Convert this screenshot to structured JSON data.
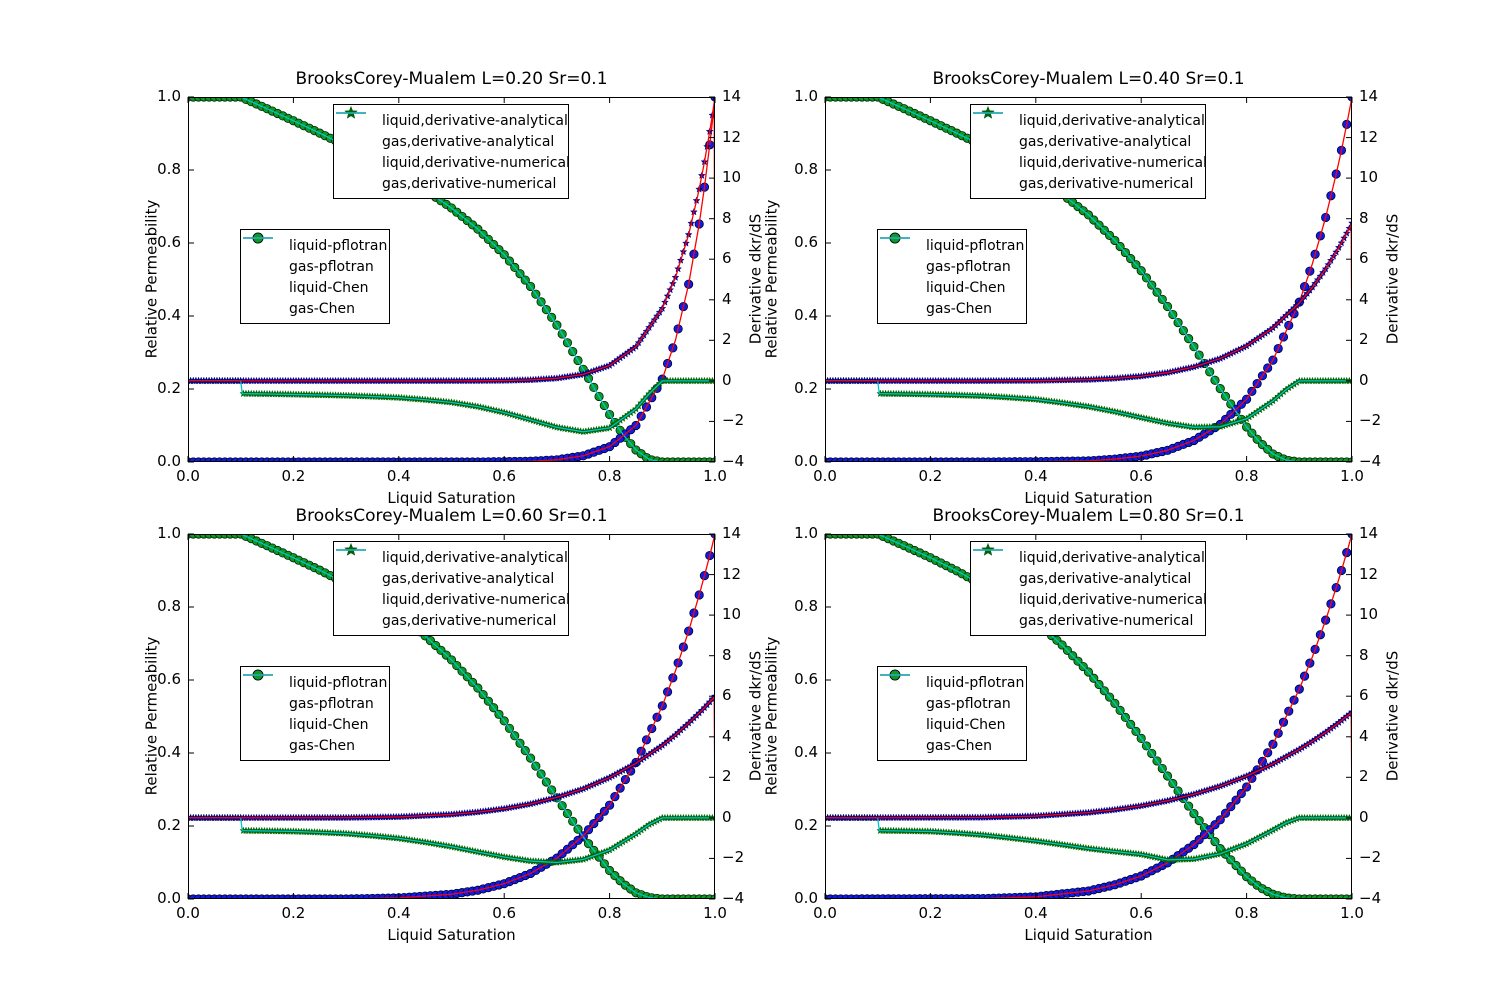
{
  "chart_data": {
    "type": "line",
    "layout": "2x2 subplots, twin y axes",
    "axes": {
      "xlabel": "Liquid Saturation",
      "ylabel_left": "Relative Permeability",
      "ylabel_right": "Derivative dkr/dS",
      "xlim": [
        0,
        1
      ],
      "ylim_left": [
        0.0,
        1.0
      ],
      "ylim_right": [
        -4,
        14
      ],
      "xticks": [
        0.0,
        0.2,
        0.4,
        0.6,
        0.8,
        1.0
      ],
      "xtick_labels": [
        "0.0",
        "0.2",
        "0.4",
        "0.6",
        "0.8",
        "1.0"
      ],
      "yticks_left": [
        0.0,
        0.2,
        0.4,
        0.6,
        0.8,
        1.0
      ],
      "ytick_left_labels": [
        "0.0",
        "0.2",
        "0.4",
        "0.6",
        "0.8",
        "1.0"
      ],
      "yticks_right": [
        -4,
        -2,
        0,
        2,
        4,
        6,
        8,
        10,
        12,
        14
      ],
      "ytick_right_labels": [
        "−4",
        "−2",
        "0",
        "2",
        "4",
        "6",
        "8",
        "10",
        "12",
        "14"
      ],
      "grid": false
    },
    "legend_analytical": [
      {
        "marker": "star",
        "color_key": "liquid_star",
        "label": "liquid,derivative-analytical"
      },
      {
        "marker": "star",
        "color_key": "gas_star",
        "label": "gas,derivative-analytical"
      },
      {
        "marker": "line",
        "color_key": "line_red",
        "label": "liquid,derivative-numerical"
      },
      {
        "marker": "line",
        "color_key": "line_cyan",
        "label": "gas,derivative-numerical"
      }
    ],
    "legend_pflotran": [
      {
        "marker": "circle",
        "color_key": "liquid_circle",
        "label": "liquid-pflotran"
      },
      {
        "marker": "circle",
        "color_key": "gas_circle",
        "label": "gas-pflotran"
      },
      {
        "marker": "line",
        "color_key": "line_red",
        "label": "liquid-Chen"
      },
      {
        "marker": "line",
        "color_key": "line_cyan",
        "label": "gas-Chen"
      }
    ],
    "colors": {
      "liquid_circle": "#0f1ce8",
      "gas_circle": "#0d9b22",
      "liquid_star": "#00008b",
      "gas_star": "#006400",
      "line_red": "#ff0000",
      "line_cyan": "#00c5cd",
      "spine": "#000000",
      "background": "#ffffff"
    },
    "x_gas": [
      0,
      0.05,
      0.1,
      0.15,
      0.2,
      0.25,
      0.3,
      0.35,
      0.4,
      0.45,
      0.5,
      0.55,
      0.6,
      0.65,
      0.7,
      0.75,
      0.8,
      0.825,
      0.85,
      0.875,
      0.9,
      0.95,
      1.0
    ],
    "x_gasd": [
      0,
      0.05,
      0.1,
      0.103,
      0.15,
      0.2,
      0.25,
      0.3,
      0.35,
      0.4,
      0.45,
      0.5,
      0.55,
      0.6,
      0.65,
      0.7,
      0.75,
      0.8,
      0.85,
      0.875,
      0.9,
      0.95,
      1.0
    ],
    "x_liq": [
      0,
      0.3,
      0.4,
      0.5,
      0.55,
      0.6,
      0.65,
      0.7,
      0.75,
      0.8,
      0.85,
      0.9,
      0.925,
      0.95,
      0.97,
      0.98,
      0.99,
      0.995,
      1.0
    ],
    "x_liqd": [
      0,
      0.3,
      0.4,
      0.5,
      0.55,
      0.6,
      0.65,
      0.7,
      0.75,
      0.8,
      0.85,
      0.9,
      0.925,
      0.95,
      0.97,
      0.98,
      0.99,
      0.995,
      0.9985,
      1.0
    ],
    "panels": [
      {
        "title": "BrooksCorey-Mualem L=0.20 Sr=0.1",
        "L": 0.2,
        "Sr": 0.1,
        "gas_kr": [
          1,
          1,
          1,
          0.968,
          0.935,
          0.901,
          0.866,
          0.829,
          0.789,
          0.745,
          0.696,
          0.638,
          0.568,
          0.481,
          0.375,
          0.254,
          0.13,
          0.076,
          0.033,
          0.007,
          0,
          0,
          0
        ],
        "gas_dkr": [
          0,
          0,
          0,
          -0.63,
          -0.645,
          -0.668,
          -0.695,
          -0.725,
          -0.772,
          -0.827,
          -0.93,
          -1.06,
          -1.27,
          -1.56,
          -1.92,
          -2.29,
          -2.51,
          -2.32,
          -1.39,
          -0.64,
          0,
          0,
          0
        ],
        "liquid_kr": [
          0,
          0,
          0,
          0,
          0,
          0.001,
          0.002,
          0.006,
          0.017,
          0.042,
          0.1,
          0.227,
          0.334,
          0.487,
          0.652,
          0.753,
          0.869,
          0.932,
          1.0
        ],
        "liquid_dkr": [
          0,
          0,
          0,
          0.001,
          0.005,
          0.015,
          0.046,
          0.127,
          0.321,
          0.758,
          1.69,
          3.57,
          5.1,
          7.21,
          9.45,
          10.8,
          12.3,
          13.1,
          13.75,
          14.0
        ]
      },
      {
        "title": "BrooksCorey-Mualem L=0.40 Sr=0.1",
        "L": 0.4,
        "Sr": 0.1,
        "gas_kr": [
          1,
          1,
          1,
          0.968,
          0.935,
          0.901,
          0.866,
          0.828,
          0.783,
          0.734,
          0.677,
          0.607,
          0.524,
          0.426,
          0.316,
          0.201,
          0.096,
          0.054,
          0.022,
          0.005,
          0,
          0,
          0
        ],
        "gas_dkr": [
          0,
          0,
          0,
          -0.63,
          -0.645,
          -0.668,
          -0.703,
          -0.745,
          -0.82,
          -0.914,
          -1.08,
          -1.27,
          -1.52,
          -1.81,
          -2.09,
          -2.29,
          -2.26,
          -1.87,
          -0.99,
          -0.43,
          0,
          0,
          0
        ],
        "liquid_kr": [
          0,
          0,
          0.001,
          0.003,
          0.008,
          0.016,
          0.032,
          0.059,
          0.103,
          0.172,
          0.279,
          0.438,
          0.544,
          0.67,
          0.789,
          0.854,
          0.925,
          0.962,
          1.0
        ],
        "liquid_dkr": [
          0,
          0,
          0.011,
          0.06,
          0.122,
          0.229,
          0.405,
          0.685,
          1.1,
          1.72,
          2.61,
          3.84,
          4.62,
          5.52,
          6.35,
          6.8,
          7.28,
          7.52,
          7.7,
          7.78
        ]
      },
      {
        "title": "BrooksCorey-Mualem L=0.60 Sr=0.1",
        "L": 0.6,
        "Sr": 0.1,
        "gas_kr": [
          1,
          1,
          1,
          0.968,
          0.935,
          0.901,
          0.864,
          0.823,
          0.776,
          0.721,
          0.655,
          0.578,
          0.488,
          0.386,
          0.277,
          0.17,
          0.078,
          0.043,
          0.017,
          0.004,
          0,
          0,
          0
        ],
        "gas_dkr": [
          0,
          0,
          0,
          -0.63,
          -0.645,
          -0.668,
          -0.714,
          -0.774,
          -0.88,
          -1.011,
          -1.2,
          -1.42,
          -1.68,
          -1.93,
          -2.13,
          -2.2,
          -2.05,
          -1.59,
          -0.79,
          -0.33,
          0,
          0,
          0
        ],
        "liquid_kr": [
          0,
          0,
          0.003,
          0.013,
          0.024,
          0.042,
          0.07,
          0.112,
          0.173,
          0.257,
          0.374,
          0.529,
          0.625,
          0.734,
          0.833,
          0.886,
          0.941,
          0.97,
          1.0
        ],
        "liquid_dkr": [
          0,
          0.008,
          0.048,
          0.169,
          0.285,
          0.452,
          0.687,
          1.01,
          1.43,
          1.99,
          2.69,
          3.57,
          4.09,
          4.67,
          5.17,
          5.43,
          5.71,
          5.86,
          5.95,
          6.0
        ]
      },
      {
        "title": "BrooksCorey-Mualem L=0.80 Sr=0.1",
        "L": 0.8,
        "Sr": 0.1,
        "gas_kr": [
          1,
          1,
          1,
          0.968,
          0.935,
          0.899,
          0.859,
          0.813,
          0.76,
          0.696,
          0.622,
          0.536,
          0.44,
          0.337,
          0.234,
          0.138,
          0.061,
          0.032,
          0.013,
          0.003,
          0,
          0,
          0
        ],
        "gas_dkr": [
          0,
          0,
          0,
          -0.63,
          -0.645,
          -0.668,
          -0.745,
          -0.845,
          -0.985,
          -1.139,
          -1.32,
          -1.511,
          -1.66,
          -1.8,
          -2.07,
          -2.03,
          -1.77,
          -1.28,
          -0.6,
          -0.24,
          0,
          0,
          0
        ],
        "liquid_kr": [
          0,
          0.001,
          0.006,
          0.022,
          0.039,
          0.063,
          0.099,
          0.149,
          0.217,
          0.307,
          0.424,
          0.575,
          0.664,
          0.764,
          0.853,
          0.9,
          0.949,
          0.974,
          1.0
        ],
        "liquid_dkr": [
          0,
          0.02,
          0.09,
          0.259,
          0.402,
          0.593,
          0.844,
          1.166,
          1.566,
          2.06,
          2.66,
          3.38,
          3.78,
          4.22,
          4.6,
          4.8,
          5.01,
          5.11,
          5.18,
          5.22
        ]
      }
    ]
  }
}
